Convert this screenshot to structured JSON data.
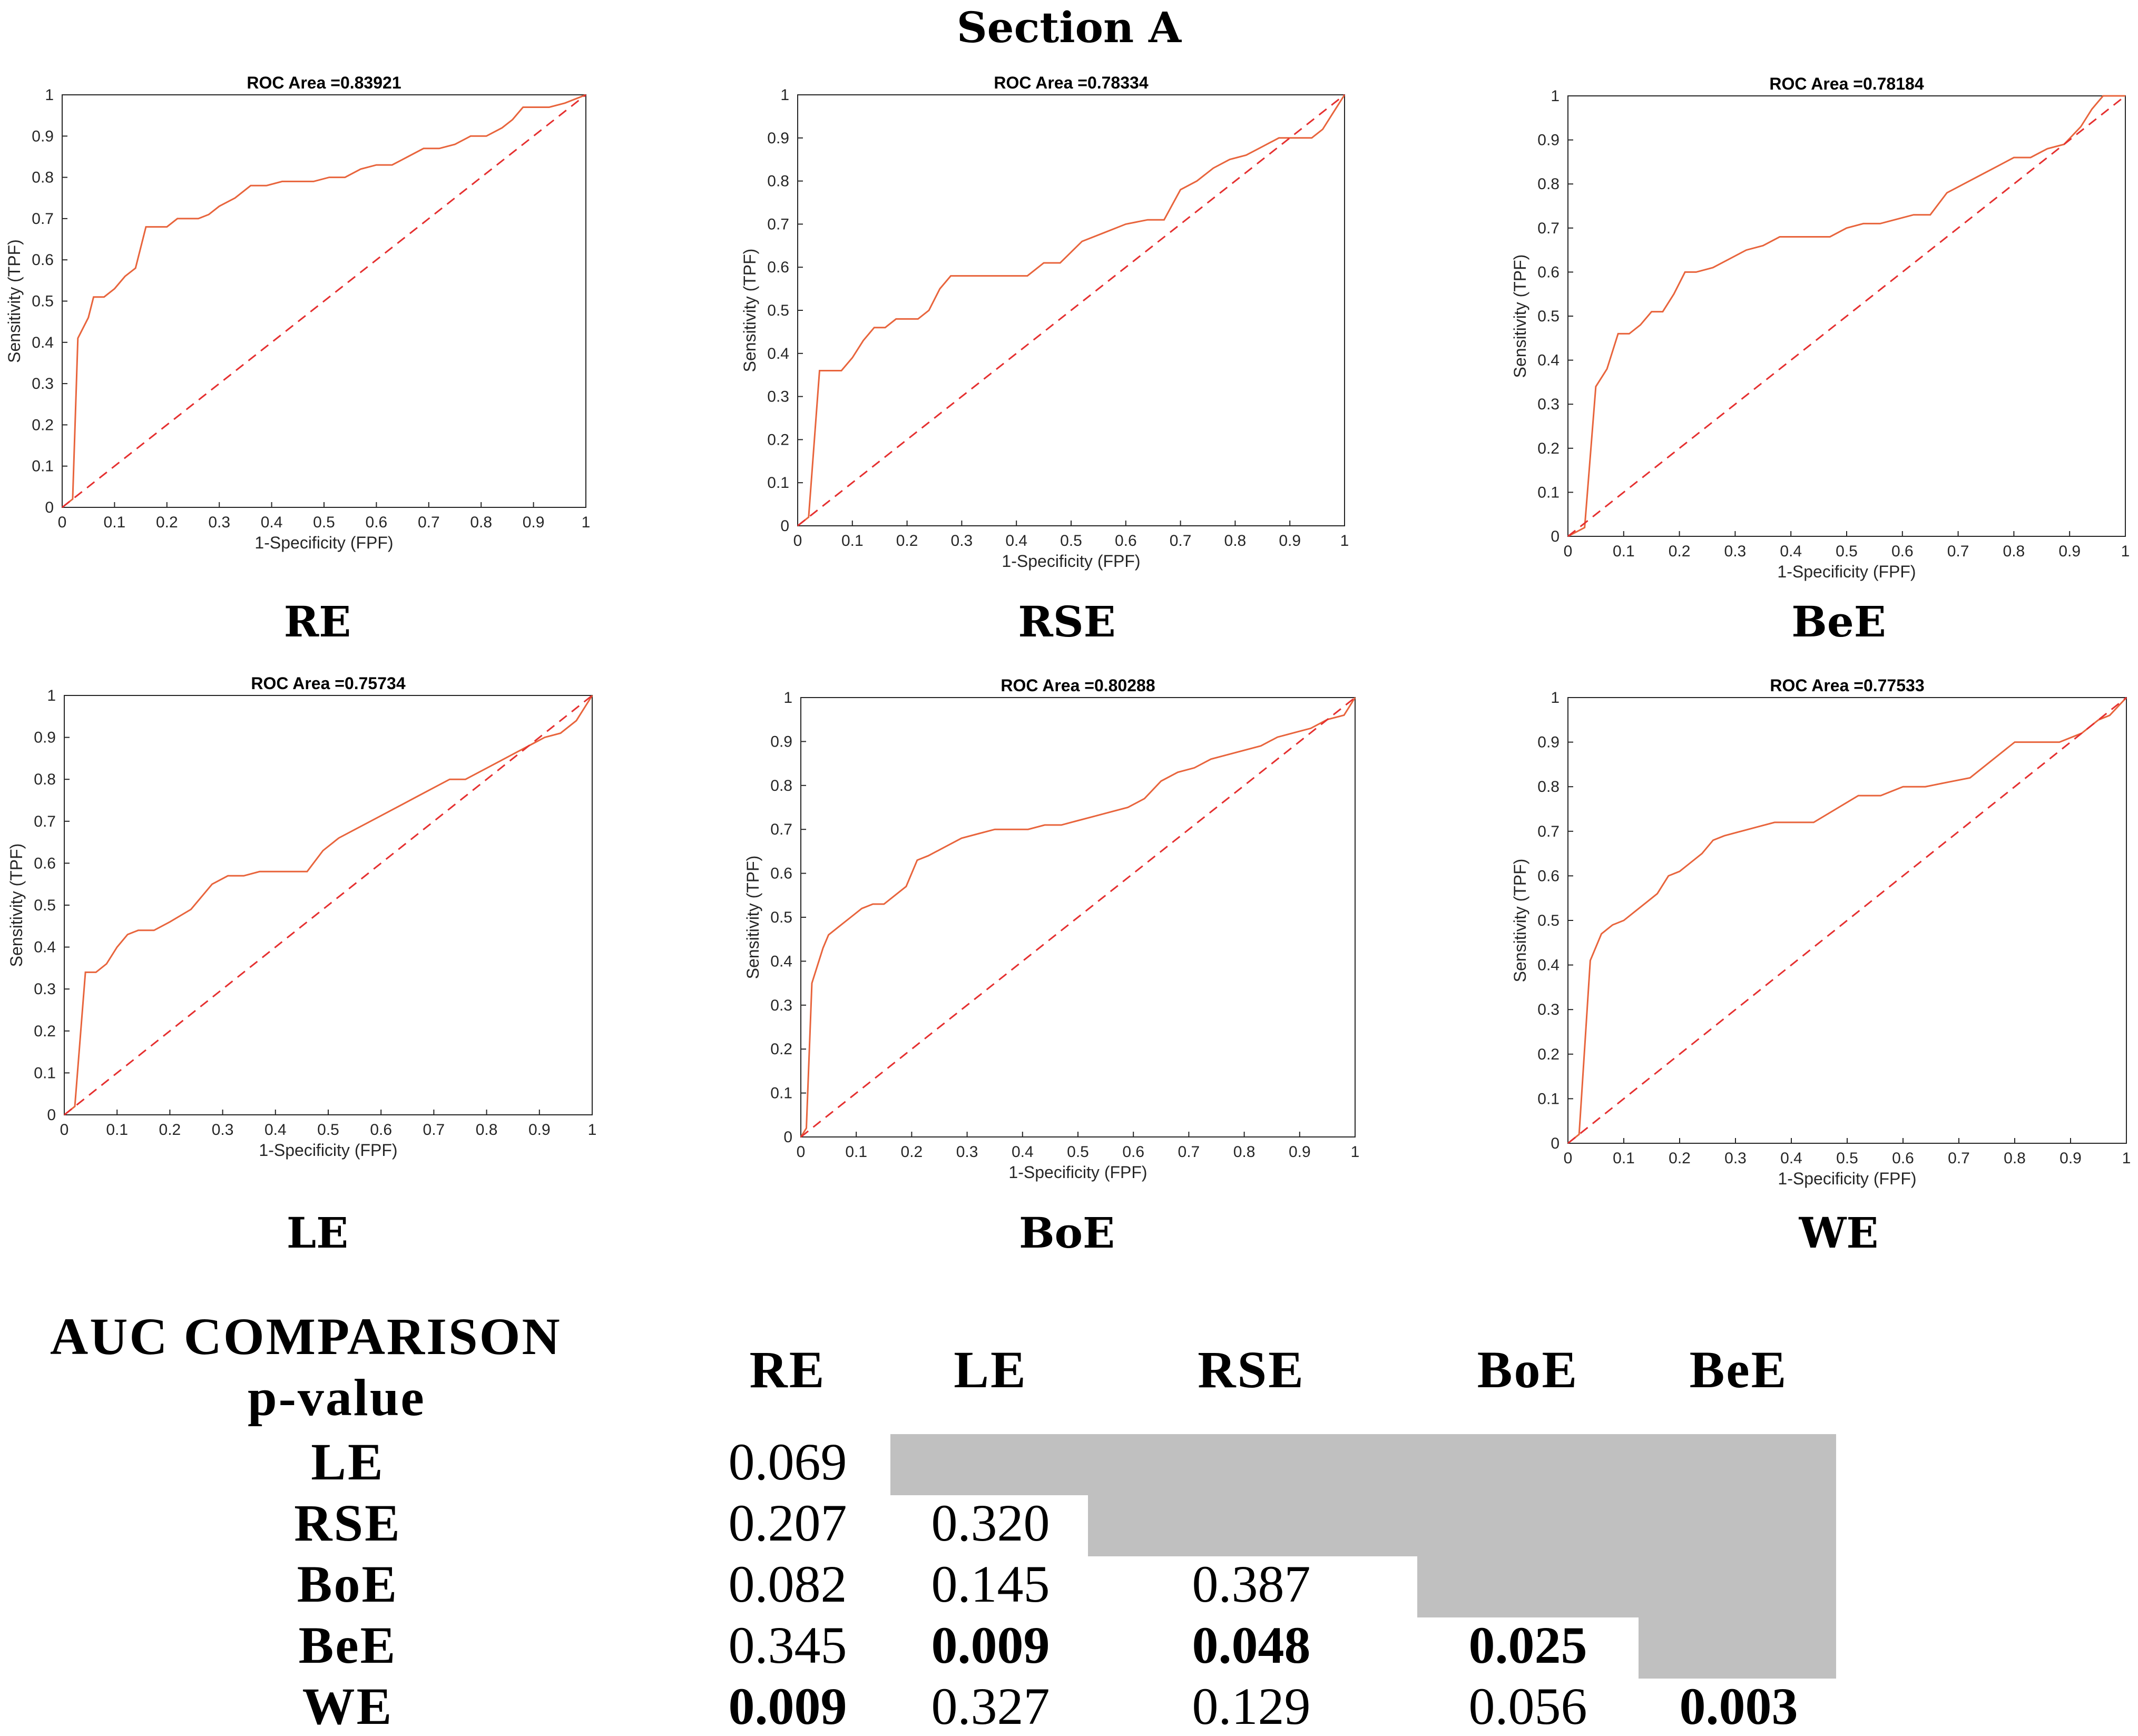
{
  "section_title": "Section A",
  "chart_data": [
    {
      "type": "line",
      "panel_label": "RE",
      "title": "ROC Area =0.83921",
      "xlabel": "1-Specificity (FPF)",
      "ylabel": "Sensitivity (TPF)",
      "xlim": [
        0,
        1
      ],
      "ylim": [
        0,
        1
      ],
      "xticks": [
        "0",
        "0.1",
        "0.2",
        "0.3",
        "0.4",
        "0.5",
        "0.6",
        "0.7",
        "0.8",
        "0.9",
        "1"
      ],
      "yticks": [
        "0",
        "0.1",
        "0.2",
        "0.3",
        "0.4",
        "0.5",
        "0.6",
        "0.7",
        "0.8",
        "0.9",
        "1"
      ],
      "series": [
        {
          "name": "ROC",
          "color": "#e8643c",
          "x": [
            0,
            0.02,
            0.03,
            0.05,
            0.06,
            0.08,
            0.09,
            0.1,
            0.12,
            0.14,
            0.16,
            0.18,
            0.2,
            0.22,
            0.24,
            0.26,
            0.28,
            0.3,
            0.33,
            0.36,
            0.39,
            0.42,
            0.45,
            0.48,
            0.51,
            0.54,
            0.57,
            0.6,
            0.63,
            0.66,
            0.69,
            0.72,
            0.75,
            0.78,
            0.81,
            0.84,
            0.86,
            0.88,
            0.9,
            0.93,
            0.96,
            1
          ],
          "y": [
            0,
            0.02,
            0.41,
            0.46,
            0.51,
            0.51,
            0.52,
            0.53,
            0.56,
            0.58,
            0.68,
            0.68,
            0.68,
            0.7,
            0.7,
            0.7,
            0.71,
            0.73,
            0.75,
            0.78,
            0.78,
            0.79,
            0.79,
            0.79,
            0.8,
            0.8,
            0.82,
            0.83,
            0.83,
            0.85,
            0.87,
            0.87,
            0.88,
            0.9,
            0.9,
            0.92,
            0.94,
            0.97,
            0.97,
            0.97,
            0.98,
            1
          ]
        },
        {
          "name": "Chance",
          "color": "#e53030",
          "x": [
            0,
            1
          ],
          "y": [
            0,
            1
          ]
        }
      ]
    },
    {
      "type": "line",
      "panel_label": "RSE",
      "title": "ROC Area =0.78334",
      "xlabel": "1-Specificity (FPF)",
      "ylabel": "Sensitivity (TPF)",
      "xlim": [
        0,
        1
      ],
      "ylim": [
        0,
        1
      ],
      "xticks": [
        "0",
        "0.1",
        "0.2",
        "0.3",
        "0.4",
        "0.5",
        "0.6",
        "0.7",
        "0.8",
        "0.9",
        "1"
      ],
      "yticks": [
        "0",
        "0.1",
        "0.2",
        "0.3",
        "0.4",
        "0.5",
        "0.6",
        "0.7",
        "0.8",
        "0.9",
        "1"
      ],
      "series": [
        {
          "name": "ROC",
          "color": "#e8643c",
          "x": [
            0,
            0.02,
            0.04,
            0.06,
            0.08,
            0.1,
            0.12,
            0.14,
            0.16,
            0.18,
            0.2,
            0.22,
            0.24,
            0.26,
            0.28,
            0.3,
            0.33,
            0.36,
            0.39,
            0.42,
            0.45,
            0.48,
            0.52,
            0.56,
            0.6,
            0.64,
            0.67,
            0.7,
            0.73,
            0.76,
            0.79,
            0.82,
            0.85,
            0.88,
            0.91,
            0.94,
            0.96,
            0.98,
            1
          ],
          "y": [
            0,
            0.02,
            0.36,
            0.36,
            0.36,
            0.39,
            0.43,
            0.46,
            0.46,
            0.48,
            0.48,
            0.48,
            0.5,
            0.55,
            0.58,
            0.58,
            0.58,
            0.58,
            0.58,
            0.58,
            0.61,
            0.61,
            0.66,
            0.68,
            0.7,
            0.71,
            0.71,
            0.78,
            0.8,
            0.83,
            0.85,
            0.86,
            0.88,
            0.9,
            0.9,
            0.9,
            0.92,
            0.96,
            1
          ]
        },
        {
          "name": "Chance",
          "color": "#e53030",
          "x": [
            0,
            1
          ],
          "y": [
            0,
            1
          ]
        }
      ]
    },
    {
      "type": "line",
      "panel_label": "BeE",
      "title": "ROC Area =0.78184",
      "xlabel": "1-Specificity (FPF)",
      "ylabel": "Sensitivity (TPF)",
      "xlim": [
        0,
        1
      ],
      "ylim": [
        0,
        1
      ],
      "xticks": [
        "0",
        "0.1",
        "0.2",
        "0.3",
        "0.4",
        "0.5",
        "0.6",
        "0.7",
        "0.8",
        "0.9",
        "1"
      ],
      "yticks": [
        "0",
        "0.1",
        "0.2",
        "0.3",
        "0.4",
        "0.5",
        "0.6",
        "0.7",
        "0.8",
        "0.9",
        "1"
      ],
      "series": [
        {
          "name": "ROC",
          "color": "#e8643c",
          "x": [
            0,
            0.03,
            0.05,
            0.07,
            0.09,
            0.11,
            0.13,
            0.15,
            0.17,
            0.19,
            0.21,
            0.23,
            0.26,
            0.29,
            0.32,
            0.35,
            0.38,
            0.41,
            0.44,
            0.47,
            0.5,
            0.53,
            0.56,
            0.59,
            0.62,
            0.65,
            0.68,
            0.71,
            0.74,
            0.77,
            0.8,
            0.83,
            0.86,
            0.89,
            0.92,
            0.94,
            0.96,
            1
          ],
          "y": [
            0,
            0.02,
            0.34,
            0.38,
            0.46,
            0.46,
            0.48,
            0.51,
            0.51,
            0.55,
            0.6,
            0.6,
            0.61,
            0.63,
            0.65,
            0.66,
            0.68,
            0.68,
            0.68,
            0.68,
            0.7,
            0.71,
            0.71,
            0.72,
            0.73,
            0.73,
            0.78,
            0.8,
            0.82,
            0.84,
            0.86,
            0.86,
            0.88,
            0.89,
            0.93,
            0.97,
            1,
            1
          ]
        },
        {
          "name": "Chance",
          "color": "#e53030",
          "x": [
            0,
            1
          ],
          "y": [
            0,
            1
          ]
        }
      ]
    },
    {
      "type": "line",
      "panel_label": "LE",
      "title": "ROC Area =0.75734",
      "xlabel": "1-Specificity (FPF)",
      "ylabel": "Sensitivity (TPF)",
      "xlim": [
        0,
        1
      ],
      "ylim": [
        0,
        1
      ],
      "xticks": [
        "0",
        "0.1",
        "0.2",
        "0.3",
        "0.4",
        "0.5",
        "0.6",
        "0.7",
        "0.8",
        "0.9",
        "1"
      ],
      "yticks": [
        "0",
        "0.1",
        "0.2",
        "0.3",
        "0.4",
        "0.5",
        "0.6",
        "0.7",
        "0.8",
        "0.9",
        "1"
      ],
      "series": [
        {
          "name": "ROC",
          "color": "#e8643c",
          "x": [
            0,
            0.02,
            0.04,
            0.06,
            0.08,
            0.1,
            0.12,
            0.14,
            0.17,
            0.2,
            0.24,
            0.28,
            0.31,
            0.34,
            0.37,
            0.4,
            0.43,
            0.46,
            0.49,
            0.52,
            0.55,
            0.58,
            0.61,
            0.64,
            0.67,
            0.7,
            0.73,
            0.76,
            0.79,
            0.82,
            0.85,
            0.88,
            0.91,
            0.94,
            0.97,
            1
          ],
          "y": [
            0,
            0.02,
            0.34,
            0.34,
            0.36,
            0.4,
            0.43,
            0.44,
            0.44,
            0.46,
            0.49,
            0.55,
            0.57,
            0.57,
            0.58,
            0.58,
            0.58,
            0.58,
            0.63,
            0.66,
            0.68,
            0.7,
            0.72,
            0.74,
            0.76,
            0.78,
            0.8,
            0.8,
            0.82,
            0.84,
            0.86,
            0.88,
            0.9,
            0.91,
            0.94,
            1
          ]
        },
        {
          "name": "Chance",
          "color": "#e53030",
          "x": [
            0,
            1
          ],
          "y": [
            0,
            1
          ]
        }
      ]
    },
    {
      "type": "line",
      "panel_label": "BoE",
      "title": "ROC Area =0.80288",
      "xlabel": "1-Specificity (FPF)",
      "ylabel": "Sensitivity (TPF)",
      "xlim": [
        0,
        1
      ],
      "ylim": [
        0,
        1
      ],
      "xticks": [
        "0",
        "0.1",
        "0.2",
        "0.3",
        "0.4",
        "0.5",
        "0.6",
        "0.7",
        "0.8",
        "0.9",
        "1"
      ],
      "yticks": [
        "0",
        "0.1",
        "0.2",
        "0.3",
        "0.4",
        "0.5",
        "0.6",
        "0.7",
        "0.8",
        "0.9",
        "1"
      ],
      "series": [
        {
          "name": "ROC",
          "color": "#e8643c",
          "x": [
            0,
            0.01,
            0.02,
            0.04,
            0.05,
            0.07,
            0.09,
            0.11,
            0.13,
            0.15,
            0.17,
            0.19,
            0.21,
            0.23,
            0.26,
            0.29,
            0.32,
            0.35,
            0.38,
            0.41,
            0.44,
            0.47,
            0.5,
            0.53,
            0.56,
            0.59,
            0.62,
            0.65,
            0.68,
            0.71,
            0.74,
            0.77,
            0.8,
            0.83,
            0.86,
            0.89,
            0.92,
            0.95,
            0.98,
            1
          ],
          "y": [
            0,
            0.02,
            0.35,
            0.43,
            0.46,
            0.48,
            0.5,
            0.52,
            0.53,
            0.53,
            0.55,
            0.57,
            0.63,
            0.64,
            0.66,
            0.68,
            0.69,
            0.7,
            0.7,
            0.7,
            0.71,
            0.71,
            0.72,
            0.73,
            0.74,
            0.75,
            0.77,
            0.81,
            0.83,
            0.84,
            0.86,
            0.87,
            0.88,
            0.89,
            0.91,
            0.92,
            0.93,
            0.95,
            0.96,
            1
          ]
        },
        {
          "name": "Chance",
          "color": "#e53030",
          "x": [
            0,
            1
          ],
          "y": [
            0,
            1
          ]
        }
      ]
    },
    {
      "type": "line",
      "panel_label": "WE",
      "title": "ROC Area =0.77533",
      "xlabel": "1-Specificity (FPF)",
      "ylabel": "Sensitivity (TPF)",
      "xlim": [
        0,
        1
      ],
      "ylim": [
        0,
        1
      ],
      "xticks": [
        "0",
        "0.1",
        "0.2",
        "0.3",
        "0.4",
        "0.5",
        "0.6",
        "0.7",
        "0.8",
        "0.9",
        "1"
      ],
      "yticks": [
        "0",
        "0.1",
        "0.2",
        "0.3",
        "0.4",
        "0.5",
        "0.6",
        "0.7",
        "0.8",
        "0.9",
        "1"
      ],
      "series": [
        {
          "name": "ROC",
          "color": "#e8643c",
          "x": [
            0,
            0.02,
            0.04,
            0.06,
            0.08,
            0.1,
            0.12,
            0.14,
            0.16,
            0.18,
            0.2,
            0.22,
            0.24,
            0.26,
            0.28,
            0.31,
            0.34,
            0.37,
            0.4,
            0.44,
            0.48,
            0.52,
            0.56,
            0.6,
            0.64,
            0.68,
            0.72,
            0.76,
            0.8,
            0.84,
            0.88,
            0.92,
            0.95,
            0.97,
            1
          ],
          "y": [
            0,
            0.02,
            0.41,
            0.47,
            0.49,
            0.5,
            0.52,
            0.54,
            0.56,
            0.6,
            0.61,
            0.63,
            0.65,
            0.68,
            0.69,
            0.7,
            0.71,
            0.72,
            0.72,
            0.72,
            0.75,
            0.78,
            0.78,
            0.8,
            0.8,
            0.81,
            0.82,
            0.86,
            0.9,
            0.9,
            0.9,
            0.92,
            0.95,
            0.96,
            1
          ]
        },
        {
          "name": "Chance",
          "color": "#e53030",
          "x": [
            0,
            1
          ],
          "y": [
            0,
            1
          ]
        }
      ]
    }
  ],
  "table": {
    "title_line1": "AUC COMPARISON",
    "title_line2": "p-value",
    "col_headers": [
      "RE",
      "LE",
      "RSE",
      "BoE",
      "BeE"
    ],
    "row_headers": [
      "LE",
      "RSE",
      "BoE",
      "BeE",
      "WE"
    ],
    "rows": [
      [
        "0.069",
        "",
        "",
        "",
        ""
      ],
      [
        "0.207",
        "0.320",
        "",
        "",
        ""
      ],
      [
        "0.082",
        "0.145",
        "0.387",
        "",
        ""
      ],
      [
        "0.345",
        "0.009",
        "0.048",
        "0.025",
        ""
      ],
      [
        "0.009",
        "0.327",
        "0.129",
        "0.056",
        "0.003"
      ]
    ],
    "bold_cells": [
      [
        3,
        1
      ],
      [
        3,
        2
      ],
      [
        3,
        3
      ],
      [
        4,
        0
      ],
      [
        4,
        4
      ]
    ],
    "shade_color": "#c0c0c0"
  }
}
